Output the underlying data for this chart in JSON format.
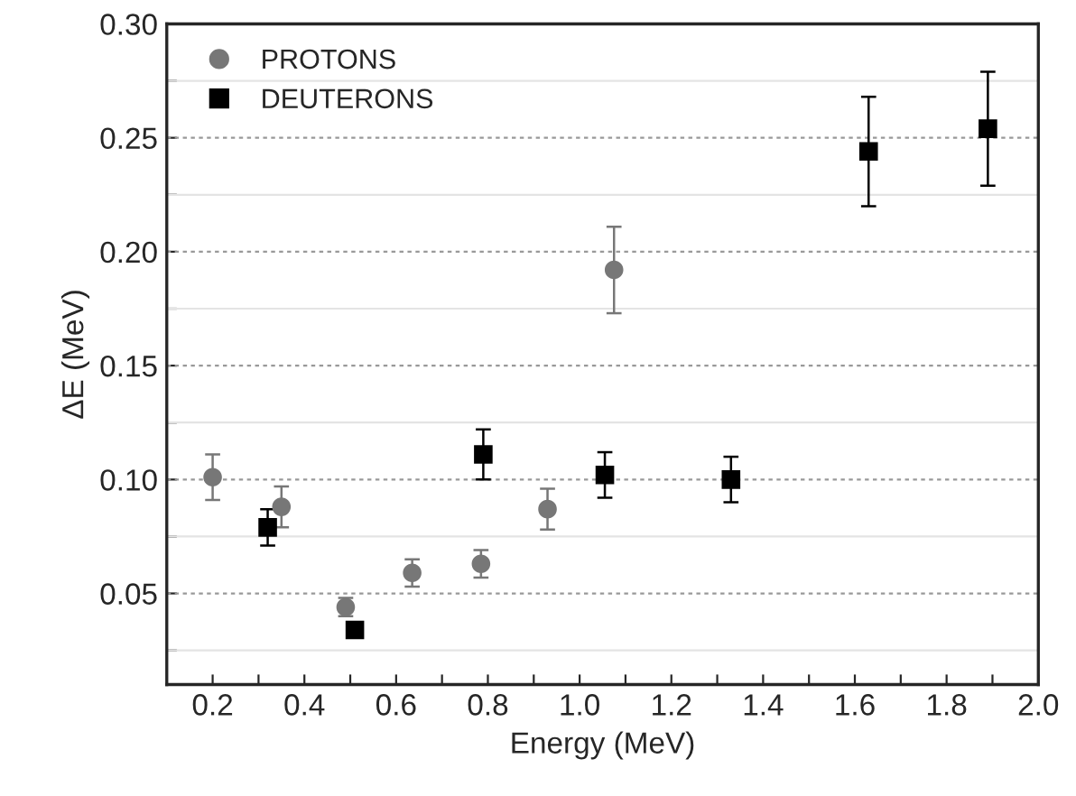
{
  "chart_data": {
    "type": "scatter",
    "xlabel": "Energy (MeV)",
    "ylabel": "ΔE (MeV)",
    "xlim": [
      0.1,
      2.0
    ],
    "ylim": [
      0.01,
      0.3
    ],
    "xticks": [
      {
        "value": 0.2,
        "label": "0.2"
      },
      {
        "value": 0.3,
        "label": null
      },
      {
        "value": 0.4,
        "label": "0.4"
      },
      {
        "value": 0.5,
        "label": null
      },
      {
        "value": 0.6,
        "label": "0.6"
      },
      {
        "value": 0.7,
        "label": null
      },
      {
        "value": 0.8,
        "label": "0.8"
      },
      {
        "value": 0.9,
        "label": null
      },
      {
        "value": 1.0,
        "label": "1.0"
      },
      {
        "value": 1.1,
        "label": null
      },
      {
        "value": 1.2,
        "label": "1.2"
      },
      {
        "value": 1.3,
        "label": null
      },
      {
        "value": 1.4,
        "label": "1.4"
      },
      {
        "value": 1.5,
        "label": null
      },
      {
        "value": 1.6,
        "label": "1.6"
      },
      {
        "value": 1.7,
        "label": null
      },
      {
        "value": 1.8,
        "label": "1.8"
      },
      {
        "value": 1.9,
        "label": null
      },
      {
        "value": 2.0,
        "label": "2.0"
      }
    ],
    "yticks": [
      {
        "value": 0.025,
        "label": null
      },
      {
        "value": 0.05,
        "label": "0.05"
      },
      {
        "value": 0.075,
        "label": null
      },
      {
        "value": 0.1,
        "label": "0.10"
      },
      {
        "value": 0.125,
        "label": null
      },
      {
        "value": 0.15,
        "label": "0.15"
      },
      {
        "value": 0.175,
        "label": null
      },
      {
        "value": 0.2,
        "label": "0.20"
      },
      {
        "value": 0.225,
        "label": null
      },
      {
        "value": 0.25,
        "label": "0.25"
      },
      {
        "value": 0.275,
        "label": null
      },
      {
        "value": 0.3,
        "label": "0.30"
      }
    ],
    "grid": "y",
    "legend": "top left",
    "series": [
      {
        "name": "PROTONS",
        "color": "#777777",
        "marker": "circle",
        "x": [
          0.2,
          0.35,
          0.49,
          0.635,
          0.785,
          0.93,
          1.075
        ],
        "values": [
          0.101,
          0.088,
          0.044,
          0.059,
          0.063,
          0.087,
          0.192
        ],
        "errors": [
          0.01,
          0.009,
          0.004,
          0.006,
          0.006,
          0.009,
          0.019
        ]
      },
      {
        "name": "DEUTERONS",
        "color": "#000000",
        "marker": "square",
        "x": [
          0.32,
          0.51,
          0.79,
          1.055,
          1.33,
          1.63,
          1.89
        ],
        "values": [
          0.079,
          0.034,
          0.111,
          0.102,
          0.1,
          0.244,
          0.254
        ],
        "errors": [
          0.008,
          null,
          0.011,
          0.01,
          0.01,
          0.024,
          0.025
        ]
      }
    ]
  }
}
